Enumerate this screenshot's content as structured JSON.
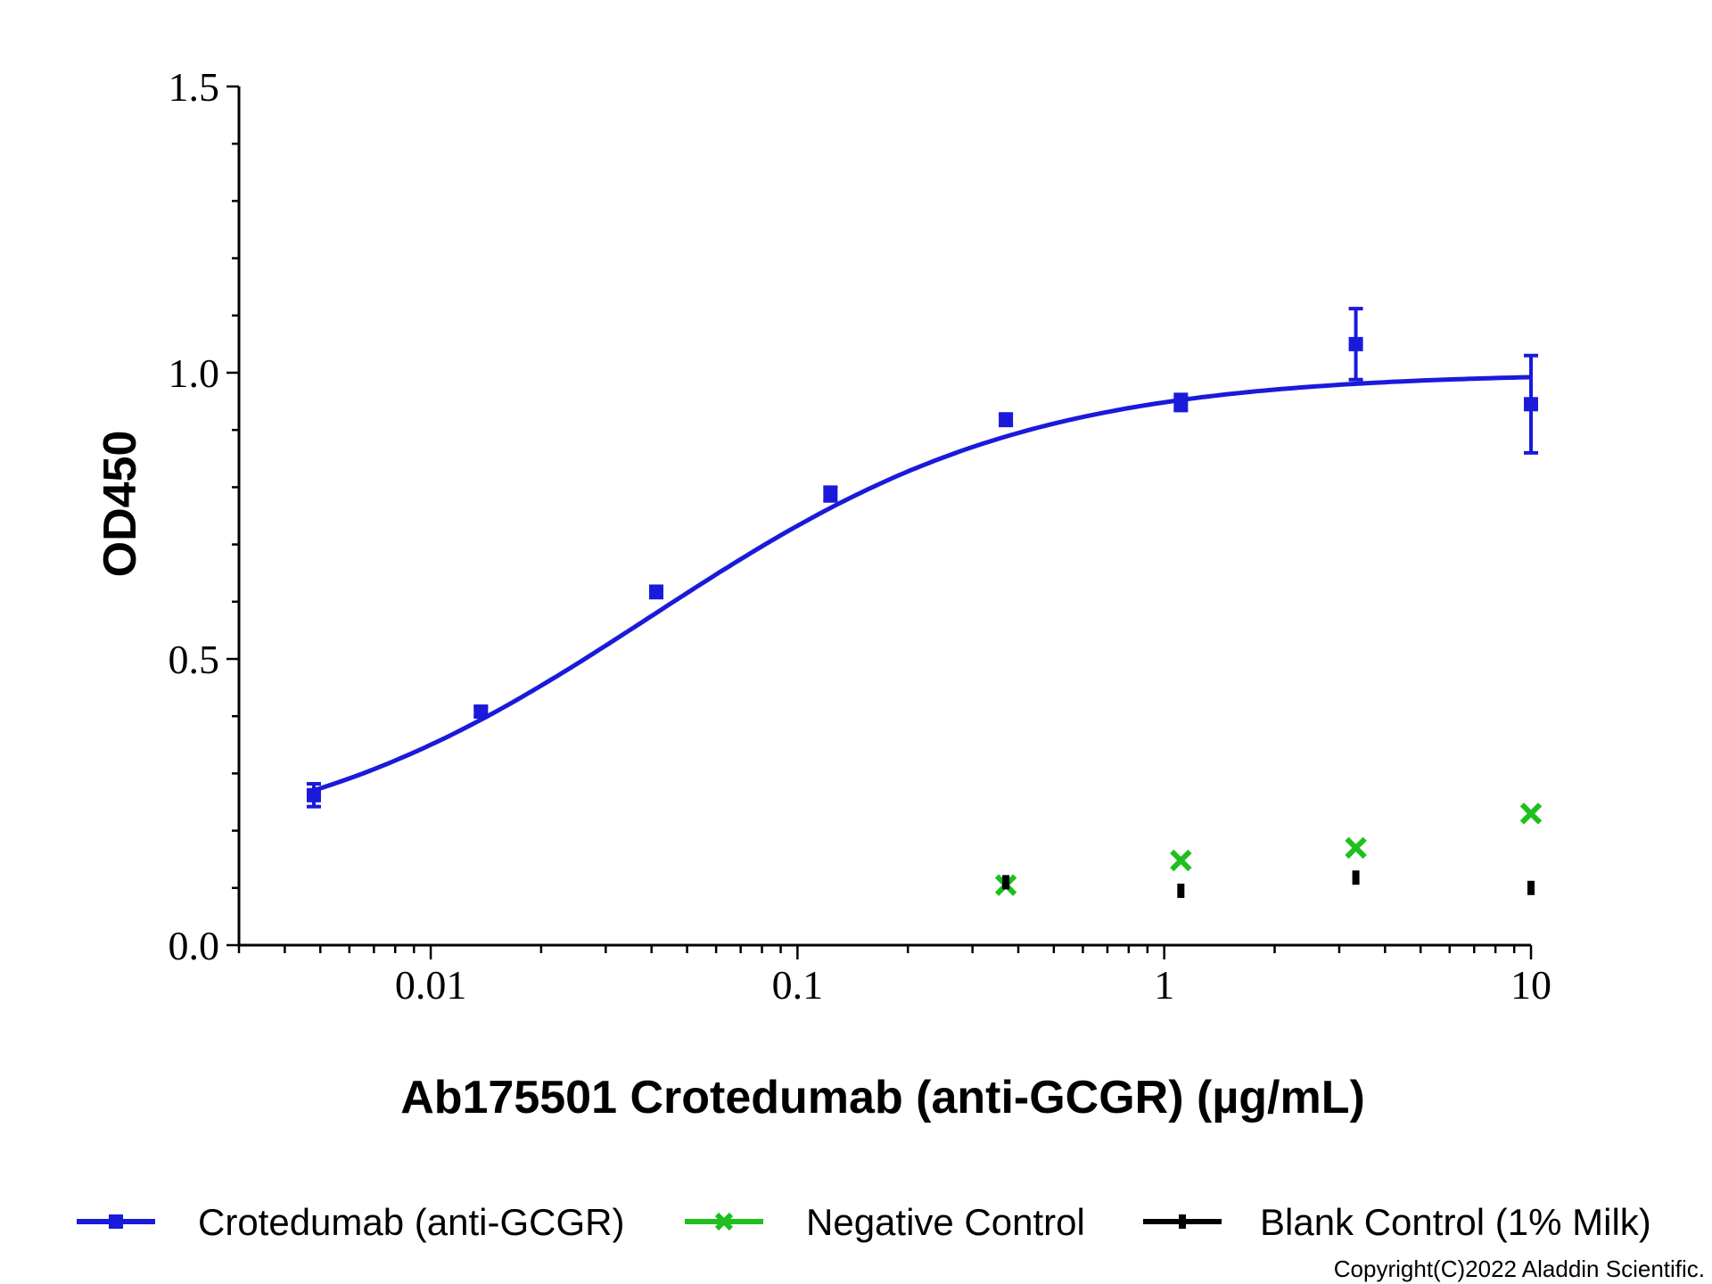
{
  "chart_data": {
    "type": "scatter",
    "x_scale": "log",
    "xlim": [
      0.003,
      10
    ],
    "ylim": [
      0,
      1.5
    ],
    "xlabel": "Ab175501 Crotedumab (anti-GCGR) (µg/mL)",
    "ylabel": "OD450",
    "x_ticks": [
      {
        "value": 0.01,
        "label": "0.01"
      },
      {
        "value": 0.1,
        "label": "0.1"
      },
      {
        "value": 1,
        "label": "1"
      },
      {
        "value": 10,
        "label": "10"
      }
    ],
    "y_ticks": [
      {
        "value": 0,
        "label": "0.0"
      },
      {
        "value": 0.5,
        "label": "0.5"
      },
      {
        "value": 1.0,
        "label": "1.0"
      },
      {
        "value": 1.5,
        "label": "1.5"
      }
    ],
    "legend_position": "bottom",
    "series": [
      {
        "name": "Crotedumab (anti-GCGR)",
        "color": "#1a1adb",
        "marker": "square",
        "fit": "4PL",
        "fit_params": {
          "bottom": 0.15,
          "top": 1.0,
          "ec50": 0.04,
          "hill": 0.85
        },
        "x": [
          0.0048,
          0.0137,
          0.0412,
          0.123,
          0.37,
          1.11,
          3.33,
          10
        ],
        "y": [
          0.262,
          0.408,
          0.617,
          0.788,
          0.918,
          0.948,
          1.05,
          0.945
        ],
        "err": [
          0.02,
          0.008,
          0.01,
          0.012,
          0.01,
          0.014,
          0.062,
          0.085
        ]
      },
      {
        "name": "Negative Control",
        "color": "#1fbf1f",
        "marker": "x",
        "x": [
          0.37,
          1.11,
          3.33,
          10
        ],
        "y": [
          0.105,
          0.148,
          0.17,
          0.23
        ]
      },
      {
        "name": "Blank Control (1% Milk)",
        "color": "#000000",
        "marker": "bar",
        "x": [
          0.37,
          1.11,
          3.33,
          10
        ],
        "y": [
          0.11,
          0.095,
          0.118,
          0.1
        ]
      }
    ]
  },
  "copyright": "Copyright(C)2022 Aladdin Scientific."
}
